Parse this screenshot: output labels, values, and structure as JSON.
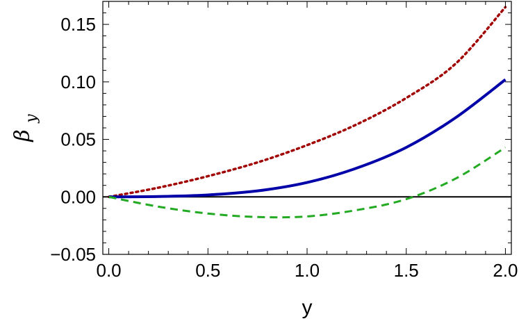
{
  "chart_data": {
    "type": "line",
    "title": "",
    "xlabel": "y",
    "ylabel": {
      "main": "β",
      "sub": "y"
    },
    "xlim": [
      -0.03,
      2.03
    ],
    "ylim": [
      -0.05,
      0.17
    ],
    "x_ticks": [
      0.0,
      0.5,
      1.0,
      1.5,
      2.0
    ],
    "x_tick_labels": [
      "0.0",
      "0.5",
      "1.0",
      "1.5",
      "2.0"
    ],
    "y_ticks": [
      -0.05,
      0.0,
      0.05,
      0.1,
      0.15
    ],
    "y_tick_labels": [
      "−0.05",
      "0.00",
      "0.05",
      "0.10",
      "0.15"
    ],
    "grid": false,
    "legend": "none",
    "reference_line": {
      "y": 0,
      "color": "#000000"
    },
    "series": [
      {
        "color": "#a00000",
        "style": "dotted",
        "x": [
          0.0,
          0.25,
          0.5,
          0.75,
          1.0,
          1.25,
          1.5,
          1.75,
          2.0
        ],
        "y": [
          0.0,
          0.008,
          0.018,
          0.03,
          0.045,
          0.063,
          0.086,
          0.116,
          0.165
        ]
      },
      {
        "color": "#0000a8",
        "style": "solid",
        "x": [
          0.0,
          0.25,
          0.5,
          0.75,
          1.0,
          1.25,
          1.5,
          1.75,
          2.0
        ],
        "y": [
          0.0,
          0.0003,
          0.0017,
          0.0052,
          0.0125,
          0.025,
          0.043,
          0.069,
          0.102
        ]
      },
      {
        "color": "#22aa22",
        "style": "dashed",
        "x": [
          0.0,
          0.25,
          0.5,
          0.75,
          1.0,
          1.25,
          1.5,
          1.75,
          2.0
        ],
        "y": [
          0.0,
          -0.0085,
          -0.0145,
          -0.0175,
          -0.017,
          -0.0115,
          -0.002,
          0.016,
          0.043
        ]
      }
    ]
  }
}
